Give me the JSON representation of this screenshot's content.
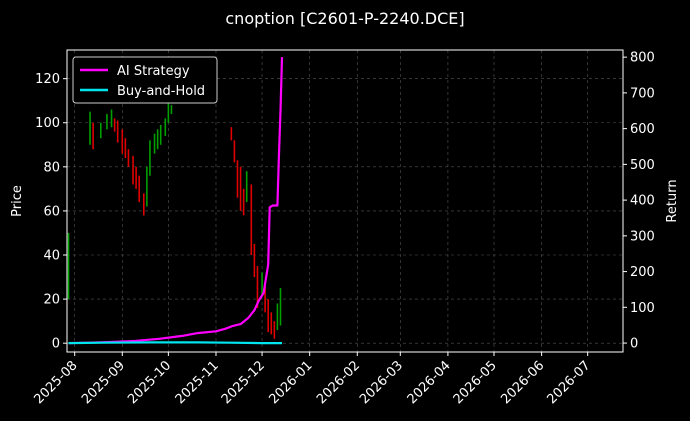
{
  "chart_data": {
    "type": "line",
    "title": "cnoption [C2601-P-2240.DCE]",
    "ylabel": "Price",
    "y2label": "Return",
    "x_ticks": [
      "2025-08",
      "2025-09",
      "2025-10",
      "2025-11",
      "2025-12",
      "2026-01",
      "2026-02",
      "2026-03",
      "2026-04",
      "2026-05",
      "2026-06",
      "2026-07"
    ],
    "xlim": [
      "2025-07-27",
      "2026-07-24"
    ],
    "ylim": [
      -4,
      133
    ],
    "y_ticks": [
      0,
      20,
      40,
      60,
      80,
      100,
      120
    ],
    "y2lim": [
      -25,
      820
    ],
    "y2_ticks": [
      0,
      100,
      200,
      300,
      400,
      500,
      600,
      700,
      800
    ],
    "grid": true,
    "legend": "upper-left",
    "background": "#000000",
    "colors": {
      "ai": "#ff00ff",
      "bh": "#00e5ee",
      "up": "#00a000",
      "down": "#e00000",
      "grid": "#555555",
      "text": "#ffffff"
    },
    "series": [
      {
        "name": "AI Strategy",
        "axis": "return",
        "points": [
          [
            "2025-07-28",
            0
          ],
          [
            "2025-08-10",
            1
          ],
          [
            "2025-08-25",
            3
          ],
          [
            "2025-09-10",
            6
          ],
          [
            "2025-09-25",
            12
          ],
          [
            "2025-10-10",
            20
          ],
          [
            "2025-10-20",
            28
          ],
          [
            "2025-11-01",
            33
          ],
          [
            "2025-11-07",
            40
          ],
          [
            "2025-11-12",
            48
          ],
          [
            "2025-11-17",
            53
          ],
          [
            "2025-11-22",
            70
          ],
          [
            "2025-11-26",
            92
          ],
          [
            "2025-11-29",
            120
          ],
          [
            "2025-12-02",
            140
          ],
          [
            "2025-12-05",
            220
          ],
          [
            "2025-12-06",
            380
          ],
          [
            "2025-12-08",
            385
          ],
          [
            "2025-12-11",
            385
          ],
          [
            "2025-12-12",
            530
          ],
          [
            "2025-12-13",
            650
          ],
          [
            "2025-12-14",
            800
          ]
        ]
      },
      {
        "name": "Buy-and-Hold",
        "axis": "return",
        "points": [
          [
            "2025-07-28",
            0
          ],
          [
            "2025-08-20",
            1
          ],
          [
            "2025-09-20",
            2
          ],
          [
            "2025-10-20",
            2
          ],
          [
            "2025-11-10",
            1
          ],
          [
            "2025-12-01",
            0
          ],
          [
            "2025-12-14",
            0
          ]
        ]
      }
    ],
    "candles": [
      [
        "2025-07-28",
        50,
        20
      ],
      [
        "2025-08-11",
        105,
        90
      ],
      [
        "2025-08-13",
        100,
        88
      ],
      [
        "2025-08-18",
        100,
        93
      ],
      [
        "2025-08-22",
        104,
        97
      ],
      [
        "2025-08-25",
        106,
        98
      ],
      [
        "2025-08-27",
        102,
        96
      ],
      [
        "2025-08-29",
        101,
        91
      ],
      [
        "2025-09-01",
        97,
        86
      ],
      [
        "2025-09-03",
        93,
        84
      ],
      [
        "2025-09-05",
        88,
        80
      ],
      [
        "2025-09-08",
        85,
        72
      ],
      [
        "2025-09-10",
        80,
        70
      ],
      [
        "2025-09-12",
        76,
        64
      ],
      [
        "2025-09-15",
        68,
        58
      ],
      [
        "2025-09-17",
        80,
        62
      ],
      [
        "2025-09-19",
        92,
        76
      ],
      [
        "2025-09-22",
        95,
        86
      ],
      [
        "2025-09-24",
        97,
        88
      ],
      [
        "2025-09-26",
        99,
        90
      ],
      [
        "2025-09-29",
        102,
        94
      ],
      [
        "2025-10-01",
        110,
        100
      ],
      [
        "2025-10-03",
        108,
        104
      ],
      [
        "2025-11-11",
        98,
        92
      ],
      [
        "2025-11-13",
        92,
        82
      ],
      [
        "2025-11-15",
        83,
        66
      ],
      [
        "2025-11-17",
        80,
        60
      ],
      [
        "2025-11-19",
        70,
        58
      ],
      [
        "2025-11-21",
        78,
        64
      ],
      [
        "2025-11-24",
        72,
        40
      ],
      [
        "2025-11-26",
        45,
        30
      ],
      [
        "2025-11-28",
        35,
        16
      ],
      [
        "2025-12-01",
        32,
        22
      ],
      [
        "2025-12-03",
        28,
        14
      ],
      [
        "2025-12-05",
        20,
        5
      ],
      [
        "2025-12-07",
        14,
        4
      ],
      [
        "2025-12-09",
        10,
        2
      ],
      [
        "2025-12-11",
        18,
        6
      ],
      [
        "2025-12-13",
        25,
        8
      ]
    ]
  }
}
